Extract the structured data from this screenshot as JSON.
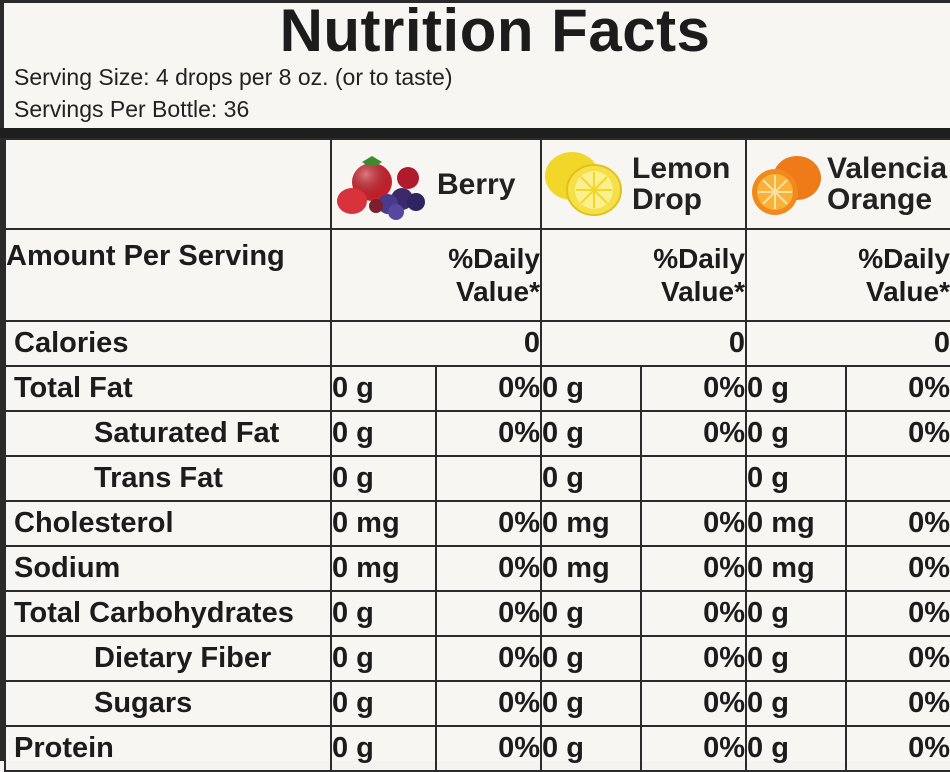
{
  "title": "Nutrition Facts",
  "serving_size": "Serving Size: 4 drops per 8 oz. (or to taste)",
  "servings_per_bottle": "Servings Per Bottle: 36",
  "amount_per_serving": "Amount Per Serving",
  "daily_value_line1": "%Daily",
  "daily_value_line2": "Value*",
  "flavors": [
    {
      "name_line1": "Berry",
      "name_line2": "",
      "icon": "berry-fruit-icon"
    },
    {
      "name_line1": "Lemon",
      "name_line2": "Drop",
      "icon": "lemon-fruit-icon"
    },
    {
      "name_line1": "Valencia",
      "name_line2": "Orange",
      "icon": "orange-fruit-icon"
    }
  ],
  "calories": {
    "label": "Calories",
    "values": [
      "0",
      "0",
      "0"
    ]
  },
  "nutrients": [
    {
      "name": "Total Fat",
      "indent": false,
      "values": [
        [
          "0 g",
          "0%"
        ],
        [
          "0 g",
          "0%"
        ],
        [
          "0 g",
          "0%"
        ]
      ]
    },
    {
      "name": "Saturated Fat",
      "indent": true,
      "values": [
        [
          "0 g",
          "0%"
        ],
        [
          "0 g",
          "0%"
        ],
        [
          "0 g",
          "0%"
        ]
      ]
    },
    {
      "name": "Trans Fat",
      "indent": true,
      "values": [
        [
          "0 g",
          ""
        ],
        [
          "0 g",
          ""
        ],
        [
          "0 g",
          ""
        ]
      ]
    },
    {
      "name": "Cholesterol",
      "indent": false,
      "values": [
        [
          "0 mg",
          "0%"
        ],
        [
          "0 mg",
          "0%"
        ],
        [
          "0 mg",
          "0%"
        ]
      ]
    },
    {
      "name": "Sodium",
      "indent": false,
      "values": [
        [
          "0 mg",
          "0%"
        ],
        [
          "0 mg",
          "0%"
        ],
        [
          "0 mg",
          "0%"
        ]
      ]
    },
    {
      "name": "Total Carbohydrates",
      "indent": false,
      "values": [
        [
          "0 g",
          "0%"
        ],
        [
          "0 g",
          "0%"
        ],
        [
          "0 g",
          "0%"
        ]
      ]
    },
    {
      "name": "Dietary Fiber",
      "indent": true,
      "values": [
        [
          "0 g",
          "0%"
        ],
        [
          "0 g",
          "0%"
        ],
        [
          "0 g",
          "0%"
        ]
      ]
    },
    {
      "name": "Sugars",
      "indent": true,
      "values": [
        [
          "0 g",
          "0%"
        ],
        [
          "0 g",
          "0%"
        ],
        [
          "0 g",
          "0%"
        ]
      ]
    },
    {
      "name": "Protein",
      "indent": false,
      "values": [
        [
          "0 g",
          "0%"
        ],
        [
          "0 g",
          "0%"
        ],
        [
          "0 g",
          "0%"
        ]
      ]
    }
  ],
  "colors": {
    "rule": "#1e1e1e",
    "background": "#f7f6f2",
    "text": "#1c1c1c"
  }
}
